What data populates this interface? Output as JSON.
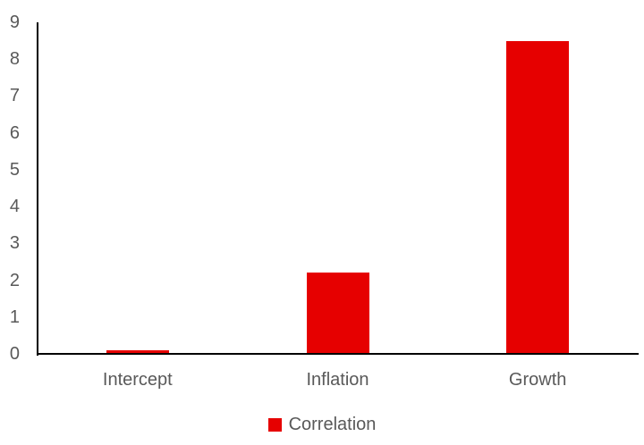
{
  "chart_data": {
    "type": "bar",
    "categories": [
      "Intercept",
      "Inflation",
      "Growth"
    ],
    "series": [
      {
        "name": "Correlation",
        "values": [
          0.1,
          2.2,
          8.5
        ]
      }
    ],
    "title": "",
    "xlabel": "",
    "ylabel": "",
    "ylim": [
      0,
      9
    ],
    "yticks": [
      0,
      1,
      2,
      3,
      4,
      5,
      6,
      7,
      8,
      9
    ],
    "grid": false,
    "legend_position": "bottom",
    "colors": {
      "bar": "#e60000",
      "axis": "#000000",
      "text": "#595959",
      "background": "#ffffff"
    }
  },
  "legend": {
    "label": "Correlation",
    "swatch_color": "#e60000"
  }
}
